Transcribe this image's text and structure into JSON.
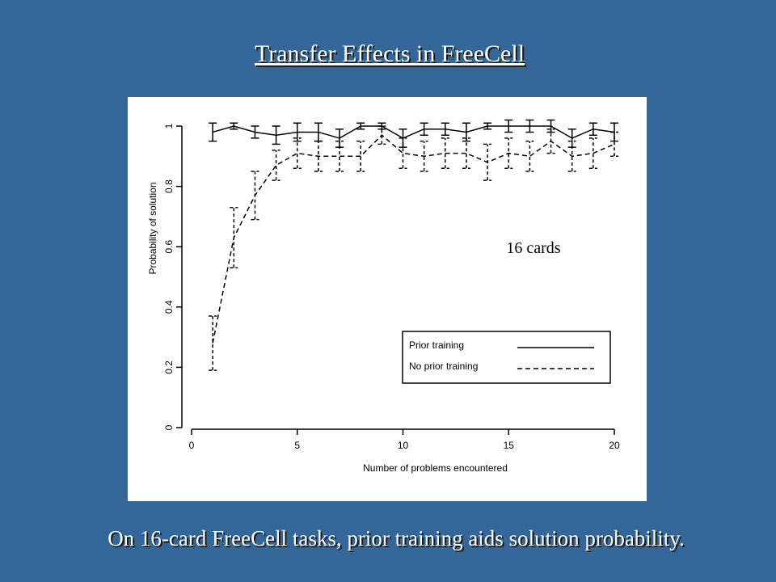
{
  "title": "Transfer Effects in FreeCell",
  "caption": "On 16-card FreeCell tasks, prior training aids solution probability.",
  "chart_data": {
    "type": "line",
    "x_label": "Number of problems encountered",
    "y_label": "Probability of solution",
    "annotation": "16 cards",
    "x": [
      1,
      2,
      3,
      4,
      5,
      6,
      7,
      8,
      9,
      10,
      11,
      12,
      13,
      14,
      15,
      16,
      17,
      18,
      19,
      20
    ],
    "series": [
      {
        "name": "Prior training",
        "color": "#000000",
        "dash": "solid",
        "values": [
          0.98,
          1.0,
          0.98,
          0.97,
          0.98,
          0.98,
          0.96,
          1.0,
          1.0,
          0.96,
          0.99,
          0.99,
          0.98,
          1.0,
          1.0,
          1.0,
          1.0,
          0.96,
          0.99,
          0.98
        ],
        "errors": [
          0.03,
          0.01,
          0.02,
          0.03,
          0.03,
          0.03,
          0.03,
          0.01,
          0.01,
          0.03,
          0.02,
          0.02,
          0.03,
          0.01,
          0.02,
          0.02,
          0.02,
          0.03,
          0.02,
          0.03
        ]
      },
      {
        "name": "No prior training",
        "color": "#000000",
        "dash": "dashed",
        "values": [
          0.28,
          0.63,
          0.77,
          0.87,
          0.91,
          0.9,
          0.9,
          0.9,
          0.97,
          0.91,
          0.9,
          0.91,
          0.91,
          0.88,
          0.91,
          0.9,
          0.95,
          0.9,
          0.91,
          0.94
        ],
        "errors": [
          0.09,
          0.1,
          0.08,
          0.05,
          0.05,
          0.05,
          0.05,
          0.05,
          0.03,
          0.05,
          0.05,
          0.05,
          0.05,
          0.06,
          0.05,
          0.05,
          0.04,
          0.05,
          0.05,
          0.04
        ]
      }
    ],
    "xlim": [
      0,
      20
    ],
    "ylim": [
      0,
      1
    ],
    "xticks": [
      0,
      5,
      10,
      15,
      20
    ],
    "yticks": [
      0,
      0.2,
      0.4,
      0.6,
      0.8,
      1
    ],
    "legend": "lower right"
  }
}
